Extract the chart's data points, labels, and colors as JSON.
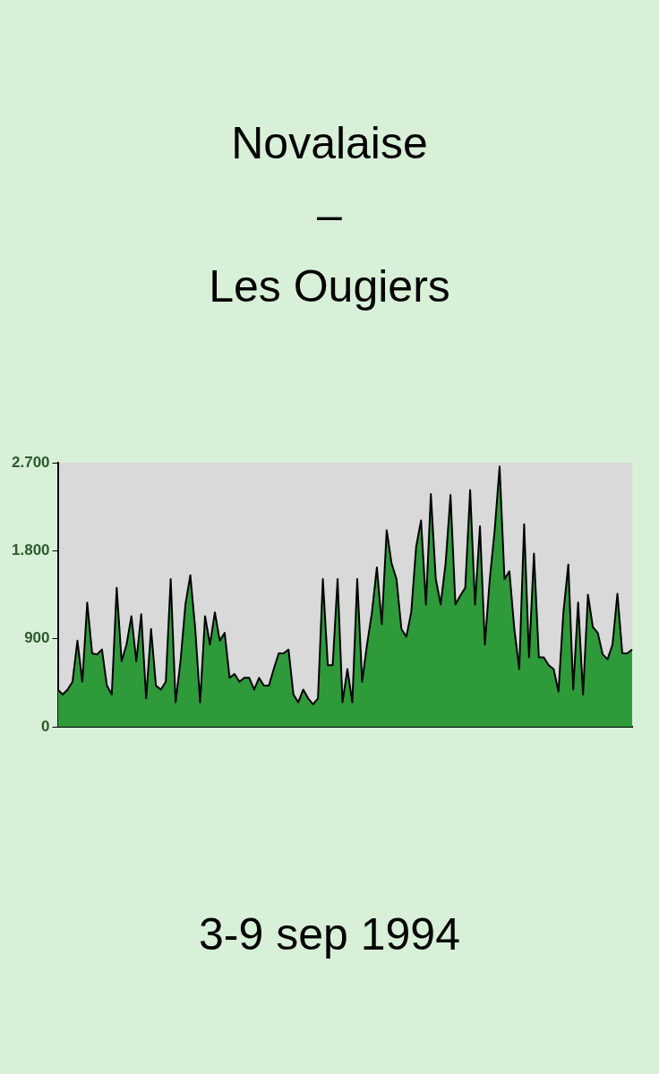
{
  "chart_data": {
    "type": "area",
    "title": "Novalaise\n–\nLes Ougiers",
    "annotations": [
      "3-9 sep 1994"
    ],
    "categories": [
      null,
      null,
      null,
      null,
      null,
      null,
      null,
      null,
      null,
      null,
      null,
      null,
      null,
      null,
      null,
      null,
      null,
      null,
      null,
      null,
      null,
      null,
      null,
      null,
      null,
      null,
      null,
      null,
      null,
      null,
      null,
      null,
      null,
      null,
      null,
      null,
      null,
      null,
      null,
      null,
      null,
      null,
      null,
      null,
      null,
      null,
      null,
      null,
      null,
      null,
      null,
      null,
      null,
      null,
      null,
      null,
      null,
      null,
      null,
      null,
      null,
      null,
      null,
      null,
      null,
      null,
      null,
      null,
      null,
      null,
      null,
      null,
      null,
      null,
      null,
      null,
      null,
      null,
      null,
      null,
      null,
      null,
      null,
      null,
      null,
      null,
      null,
      null,
      null,
      null,
      null,
      null,
      null,
      null,
      null,
      null,
      null,
      null,
      null,
      null,
      null,
      null,
      null,
      null,
      null,
      null,
      null,
      null,
      null,
      null,
      null,
      null,
      null,
      null,
      null,
      null,
      null,
      null
    ],
    "series": [
      {
        "color": "#2e9a3a",
        "values": [
          380,
          330,
          380,
          460,
          880,
          460,
          1270,
          750,
          740,
          790,
          420,
          330,
          1420,
          670,
          840,
          1130,
          670,
          1150,
          290,
          1000,
          420,
          380,
          460,
          1510,
          250,
          670,
          1250,
          1550,
          1000,
          250,
          1130,
          840,
          1170,
          880,
          960,
          500,
          540,
          460,
          500,
          500,
          380,
          500,
          420,
          420,
          590,
          750,
          750,
          790,
          330,
          250,
          380,
          290,
          230,
          290,
          1510,
          630,
          630,
          1510,
          250,
          590,
          250,
          1510,
          460,
          840,
          1170,
          1630,
          1050,
          2010,
          1670,
          1510,
          1000,
          920,
          1170,
          1840,
          2110,
          1250,
          2380,
          1510,
          1250,
          1670,
          2370,
          1250,
          1340,
          1420,
          2420,
          1250,
          2050,
          840,
          1510,
          2010,
          2660,
          1510,
          1590,
          1000,
          590,
          2070,
          710,
          1770,
          710,
          710,
          630,
          590,
          360,
          1170,
          1660,
          380,
          1270,
          330,
          1350,
          1020,
          960,
          740,
          690,
          840,
          1360,
          750,
          750,
          790
        ]
      }
    ],
    "ylim": [
      0,
      2700
    ],
    "yticks": [
      0,
      900,
      {
        "value": 1800,
        "label": "1.800"
      },
      {
        "value": 2700,
        "label": "2.700"
      }
    ],
    "grid": false,
    "legend": false
  }
}
